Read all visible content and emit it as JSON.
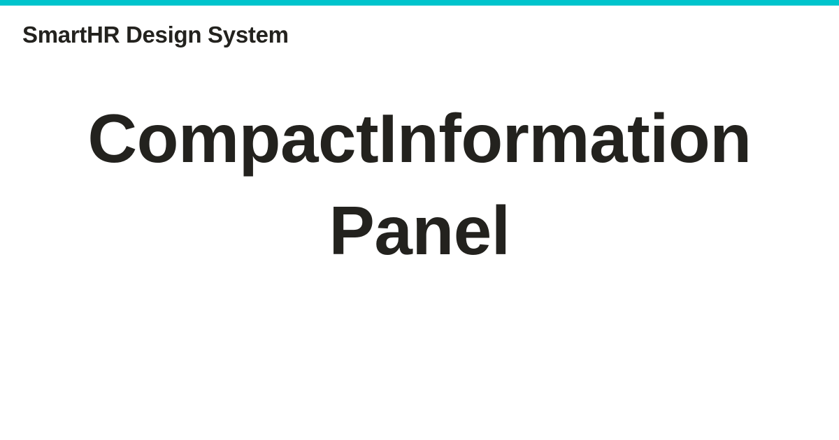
{
  "colors": {
    "accent": "#00c4cc",
    "text": "#23221e",
    "background": "#ffffff"
  },
  "brand": {
    "name": "SmartHR Design System"
  },
  "title": {
    "lines": [
      "CompactInformation",
      "Panel"
    ]
  }
}
